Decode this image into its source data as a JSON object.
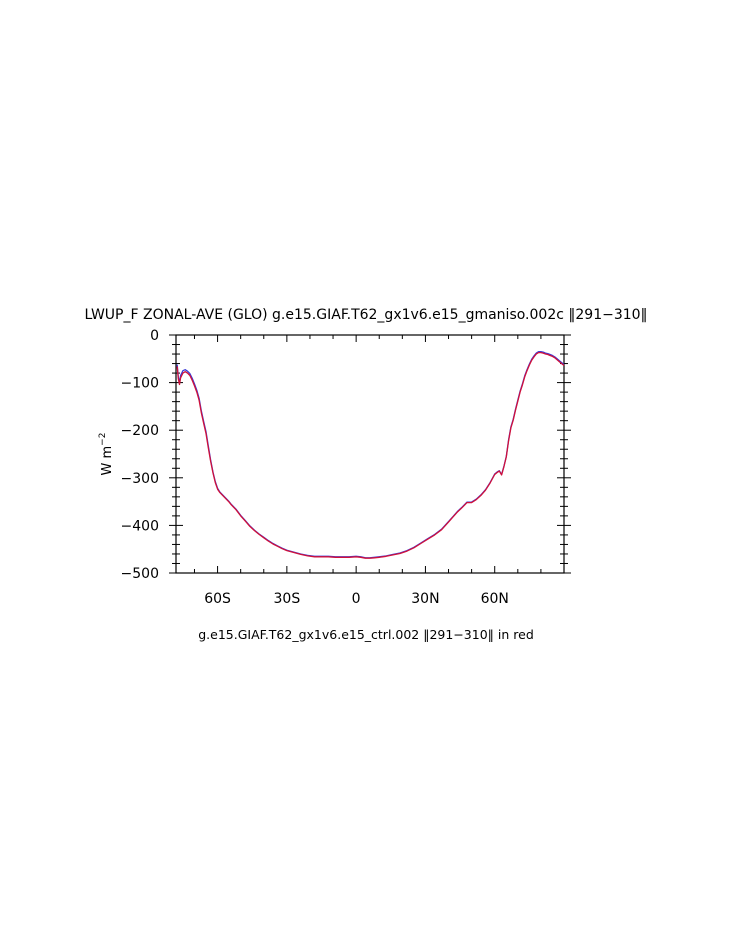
{
  "chart_data": {
    "type": "line",
    "title": "LWUP_F ZONAL-AVE (GLO) g.e15.GIAF.T62_gx1v6.e15_gmaniso.002c ‖291−310‖",
    "xlabel": "",
    "ylabel": "W m",
    "ylabel_exponent": "−2",
    "xlim": [
      -78,
      90
    ],
    "ylim": [
      -500,
      0
    ],
    "x_ticks": [
      {
        "value": -60,
        "label": "60S"
      },
      {
        "value": -30,
        "label": "30S"
      },
      {
        "value": 0,
        "label": "0"
      },
      {
        "value": 30,
        "label": "30N"
      },
      {
        "value": 60,
        "label": "60N"
      }
    ],
    "y_ticks": [
      {
        "value": 0,
        "label": "0"
      },
      {
        "value": -100,
        "label": "−100"
      },
      {
        "value": -200,
        "label": "−200"
      },
      {
        "value": -300,
        "label": "−300"
      },
      {
        "value": -400,
        "label": "−400"
      },
      {
        "value": -500,
        "label": "−500"
      }
    ],
    "footnote": "g.e15.GIAF.T62_gx1v6.e15_ctrl.002 ‖291−310‖ in red",
    "series": [
      {
        "color": "#3b3bd6",
        "x": [
          -77.5,
          -77,
          -76.5,
          -76,
          -75,
          -74,
          -73,
          -72,
          -71,
          -70,
          -69,
          -68,
          -67,
          -66,
          -65,
          -64,
          -63,
          -62,
          -61,
          -60,
          -59,
          -58,
          -57,
          -56,
          -55,
          -54,
          -52,
          -50,
          -48,
          -46,
          -44,
          -42,
          -40,
          -38,
          -36,
          -34,
          -32,
          -30,
          -27,
          -24,
          -21,
          -18,
          -15,
          -12,
          -9,
          -6,
          -3,
          0,
          2,
          4,
          6,
          8,
          10,
          13,
          16,
          19,
          22,
          25,
          28,
          31,
          34,
          37,
          40,
          42,
          44,
          46,
          48,
          50,
          52,
          54,
          56,
          58,
          60,
          61,
          62,
          63,
          64,
          65,
          66,
          67,
          68,
          69,
          70,
          71,
          72,
          73,
          74,
          75,
          76,
          77,
          78,
          79,
          80,
          81,
          82,
          83,
          84,
          85,
          86,
          87,
          88,
          89,
          90
        ],
        "y": [
          -62,
          -88,
          -100,
          -85,
          -75,
          -73,
          -76,
          -81,
          -91,
          -103,
          -116,
          -133,
          -160,
          -182,
          -203,
          -233,
          -262,
          -288,
          -308,
          -322,
          -330,
          -335,
          -340,
          -345,
          -350,
          -356,
          -366,
          -379,
          -390,
          -401,
          -410,
          -418,
          -425,
          -432,
          -438,
          -443,
          -448,
          -452,
          -456,
          -460,
          -463,
          -465,
          -465,
          -465,
          -466,
          -466,
          -466,
          -465,
          -466,
          -468,
          -468,
          -467,
          -466,
          -464,
          -461,
          -458,
          -453,
          -446,
          -437,
          -428,
          -419,
          -408,
          -392,
          -381,
          -370,
          -361,
          -351,
          -351,
          -345,
          -336,
          -325,
          -310,
          -292,
          -288,
          -285,
          -293,
          -275,
          -255,
          -220,
          -193,
          -177,
          -156,
          -137,
          -118,
          -103,
          -86,
          -73,
          -61,
          -51,
          -44,
          -38,
          -35,
          -35,
          -36,
          -38,
          -39,
          -41,
          -43,
          -46,
          -50,
          -54,
          -58,
          -62
        ]
      },
      {
        "color": "#d0103a",
        "x": [
          -77.5,
          -77,
          -76.5,
          -76,
          -75,
          -74,
          -73,
          -72,
          -71,
          -70,
          -69,
          -68,
          -67,
          -66,
          -65,
          -64,
          -63,
          -62,
          -61,
          -60,
          -59,
          -58,
          -57,
          -56,
          -55,
          -54,
          -52,
          -50,
          -48,
          -46,
          -44,
          -42,
          -40,
          -38,
          -36,
          -34,
          -32,
          -30,
          -27,
          -24,
          -21,
          -18,
          -15,
          -12,
          -9,
          -6,
          -3,
          0,
          2,
          4,
          6,
          8,
          10,
          13,
          16,
          19,
          22,
          25,
          28,
          31,
          34,
          37,
          40,
          42,
          44,
          46,
          48,
          50,
          52,
          54,
          56,
          58,
          60,
          61,
          62,
          63,
          64,
          65,
          66,
          67,
          68,
          69,
          70,
          71,
          72,
          73,
          74,
          75,
          76,
          77,
          78,
          79,
          80,
          81,
          82,
          83,
          84,
          85,
          86,
          87,
          88,
          89,
          90
        ],
        "y": [
          -66,
          -92,
          -104,
          -90,
          -80,
          -77,
          -80,
          -85,
          -95,
          -107,
          -120,
          -137,
          -164,
          -186,
          -207,
          -237,
          -265,
          -290,
          -310,
          -324,
          -331,
          -336,
          -341,
          -346,
          -351,
          -357,
          -367,
          -380,
          -391,
          -402,
          -411,
          -419,
          -426,
          -433,
          -439,
          -444,
          -449,
          -453,
          -457,
          -461,
          -464,
          -466,
          -466,
          -466,
          -467,
          -467,
          -467,
          -466,
          -467,
          -469,
          -469,
          -468,
          -467,
          -465,
          -462,
          -459,
          -454,
          -447,
          -438,
          -429,
          -420,
          -409,
          -393,
          -382,
          -371,
          -362,
          -352,
          -352,
          -346,
          -337,
          -326,
          -311,
          -293,
          -289,
          -286,
          -294,
          -276,
          -256,
          -222,
          -195,
          -179,
          -158,
          -139,
          -120,
          -105,
          -88,
          -75,
          -63,
          -53,
          -46,
          -40,
          -37,
          -37,
          -38,
          -40,
          -41,
          -43,
          -45,
          -48,
          -52,
          -56,
          -60,
          -64
        ]
      }
    ]
  }
}
